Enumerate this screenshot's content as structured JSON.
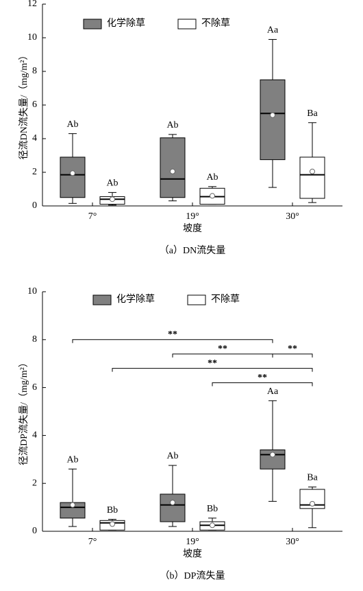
{
  "chart_data": [
    {
      "type": "box",
      "y_label": "径流DN流失量/（mg/m²）",
      "x_label": "坡度",
      "caption": "（a）DN流失量",
      "categories": [
        "7°",
        "19°",
        "30°"
      ],
      "ylim": [
        0,
        12
      ],
      "yticks": [
        0,
        2,
        4,
        6,
        8,
        10,
        12
      ],
      "series": [
        {
          "name": "化学除草",
          "color": "#808080",
          "values": [
            {
              "min": 0.15,
              "q1": 0.5,
              "median": 1.85,
              "q3": 2.9,
              "max": 4.3,
              "mean": 1.95,
              "label": "Ab"
            },
            {
              "min": 0.3,
              "q1": 0.5,
              "median": 1.6,
              "q3": 4.05,
              "max": 4.25,
              "mean": 2.05,
              "label": "Ab"
            },
            {
              "min": 1.1,
              "q1": 2.75,
              "median": 5.5,
              "q3": 7.5,
              "max": 9.9,
              "mean": 5.4,
              "label": "Aa"
            }
          ]
        },
        {
          "name": "不除草",
          "color": "#ffffff",
          "values": [
            {
              "min": 0.05,
              "q1": 0.1,
              "median": 0.4,
              "q3": 0.55,
              "max": 0.8,
              "mean": 0.4,
              "label": "Ab"
            },
            {
              "min": 0.1,
              "q1": 0.1,
              "median": 0.55,
              "q3": 1.05,
              "max": 1.15,
              "mean": 0.6,
              "label": "Ab"
            },
            {
              "min": 0.2,
              "q1": 0.45,
              "median": 1.85,
              "q3": 2.9,
              "max": 4.95,
              "mean": 2.05,
              "label": "Ba"
            }
          ]
        }
      ]
    },
    {
      "type": "box",
      "y_label": "径流DP流失量/（mg/m²）",
      "x_label": "坡度",
      "caption": "（b）DP流失量",
      "categories": [
        "7°",
        "19°",
        "30°"
      ],
      "ylim": [
        0,
        10
      ],
      "yticks": [
        0,
        2,
        4,
        6,
        8,
        10
      ],
      "series": [
        {
          "name": "化学除草",
          "color": "#808080",
          "values": [
            {
              "min": 0.2,
              "q1": 0.55,
              "median": 1.0,
              "q3": 1.2,
              "max": 2.6,
              "mean": 1.1,
              "label": "Ab"
            },
            {
              "min": 0.2,
              "q1": 0.4,
              "median": 1.1,
              "q3": 1.55,
              "max": 2.75,
              "mean": 1.2,
              "label": "Ab"
            },
            {
              "min": 1.25,
              "q1": 2.6,
              "median": 3.2,
              "q3": 3.4,
              "max": 5.45,
              "mean": 3.2,
              "label": "Aa"
            }
          ]
        },
        {
          "name": "不除草",
          "color": "#ffffff",
          "values": [
            {
              "min": 0.05,
              "q1": 0.05,
              "median": 0.35,
              "q3": 0.45,
              "max": 0.5,
              "mean": 0.3,
              "label": "Bb"
            },
            {
              "min": 0.05,
              "q1": 0.05,
              "median": 0.25,
              "q3": 0.4,
              "max": 0.55,
              "mean": 0.25,
              "label": "Bb"
            },
            {
              "min": 0.15,
              "q1": 0.95,
              "median": 1.1,
              "q3": 1.75,
              "max": 1.85,
              "mean": 1.15,
              "label": "Ba"
            }
          ]
        }
      ],
      "brackets": [
        {
          "from": [
            0,
            0
          ],
          "to": [
            2,
            0
          ],
          "y": 8,
          "text": "**"
        },
        {
          "from": [
            1,
            0
          ],
          "to": [
            2,
            0
          ],
          "y": 7.4,
          "text": "**"
        },
        {
          "from": [
            2,
            0
          ],
          "to": [
            2,
            1
          ],
          "y": 7.4,
          "text": "**"
        },
        {
          "from": [
            0,
            1
          ],
          "to": [
            2,
            1
          ],
          "y": 6.8,
          "text": "**"
        },
        {
          "from": [
            1,
            1
          ],
          "to": [
            2,
            1
          ],
          "y": 6.2,
          "text": "**"
        }
      ]
    }
  ]
}
